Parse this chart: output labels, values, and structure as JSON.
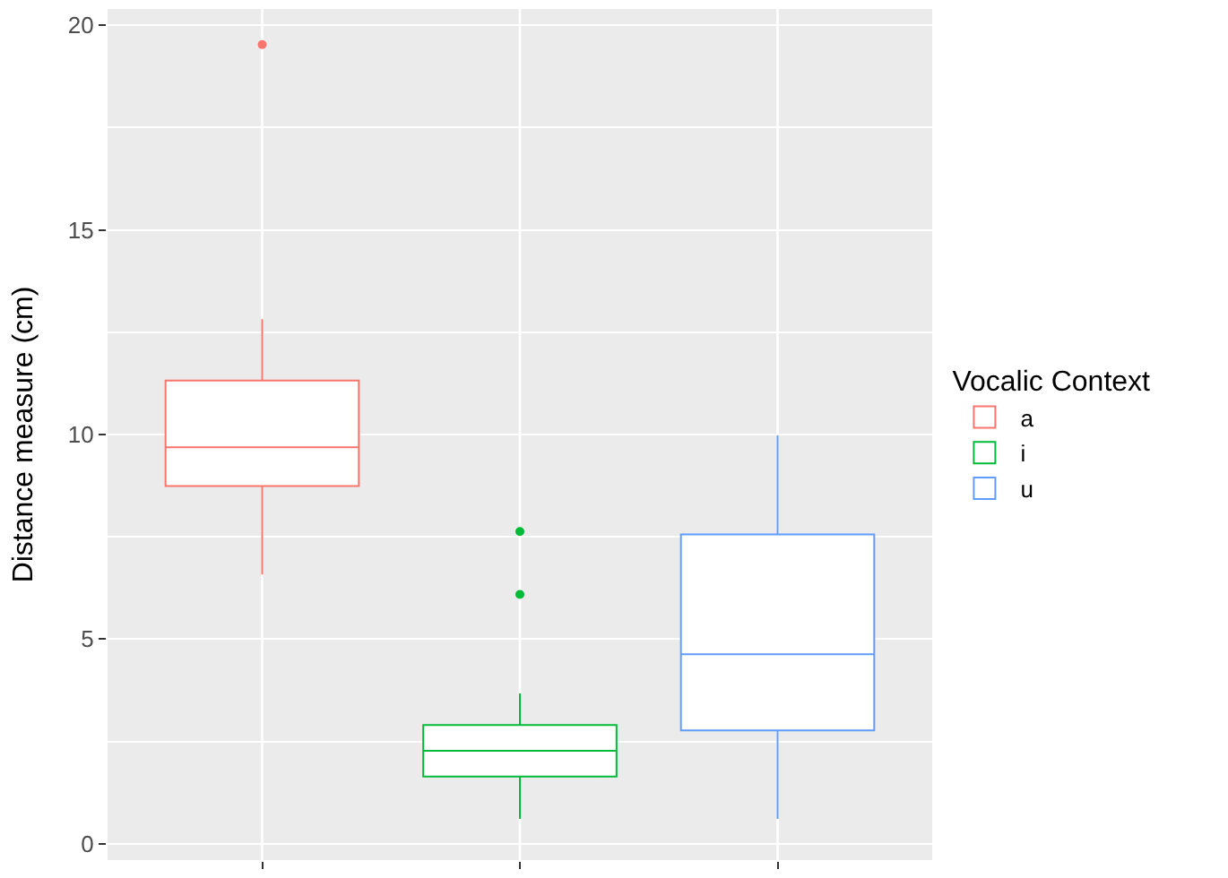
{
  "chart_data": {
    "type": "box",
    "ylabel": "Distance measure (cm)",
    "legend_title": "Vocalic Context",
    "categories": [
      null,
      null,
      null
    ],
    "ylim": [
      -0.4,
      20.4
    ],
    "yticks": [
      0,
      5,
      10,
      15,
      20
    ],
    "grid": true,
    "legend": "right",
    "series": [
      {
        "name": "a",
        "color": "#f8766d",
        "boxes": [
          {
            "low": 6.58,
            "q1": 8.74,
            "median": 9.69,
            "q3": 11.32,
            "high": 12.82,
            "outliers": [
              19.53
            ]
          },
          null,
          null
        ]
      },
      {
        "name": "i",
        "color": "#00ba38",
        "boxes": [
          null,
          {
            "low": 0.61,
            "q1": 1.64,
            "median": 2.27,
            "q3": 2.9,
            "high": 3.67,
            "outliers": [
              7.63,
              6.09
            ]
          },
          null
        ]
      },
      {
        "name": "u",
        "color": "#619cff",
        "boxes": [
          null,
          null,
          {
            "low": 0.61,
            "q1": 2.77,
            "median": 4.63,
            "q3": 7.56,
            "high": 9.98
          }
        ]
      }
    ]
  }
}
